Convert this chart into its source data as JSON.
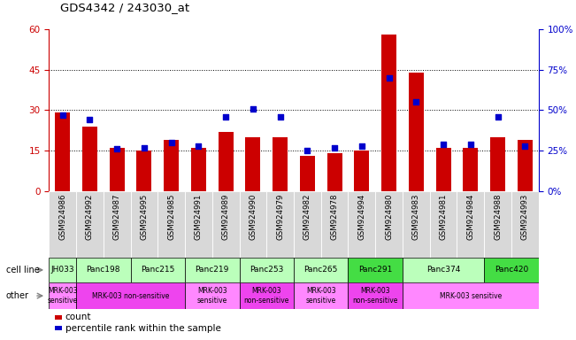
{
  "title": "GDS4342 / 243030_at",
  "samples": [
    "GSM924986",
    "GSM924992",
    "GSM924987",
    "GSM924995",
    "GSM924985",
    "GSM924991",
    "GSM924989",
    "GSM924990",
    "GSM924979",
    "GSM924982",
    "GSM924978",
    "GSM924994",
    "GSM924980",
    "GSM924983",
    "GSM924981",
    "GSM924984",
    "GSM924988",
    "GSM924993"
  ],
  "counts": [
    29,
    24,
    16,
    15,
    19,
    16,
    22,
    20,
    20,
    13,
    14,
    15,
    58,
    44,
    16,
    16,
    20,
    19
  ],
  "percentiles": [
    47,
    44,
    26,
    27,
    30,
    28,
    46,
    51,
    46,
    25,
    27,
    28,
    70,
    55,
    29,
    29,
    46,
    28
  ],
  "cell_lines": [
    {
      "name": "JH033",
      "start": 0,
      "end": 1,
      "color": "#bbffbb"
    },
    {
      "name": "Panc198",
      "start": 1,
      "end": 3,
      "color": "#bbffbb"
    },
    {
      "name": "Panc215",
      "start": 3,
      "end": 5,
      "color": "#bbffbb"
    },
    {
      "name": "Panc219",
      "start": 5,
      "end": 7,
      "color": "#bbffbb"
    },
    {
      "name": "Panc253",
      "start": 7,
      "end": 9,
      "color": "#bbffbb"
    },
    {
      "name": "Panc265",
      "start": 9,
      "end": 11,
      "color": "#bbffbb"
    },
    {
      "name": "Panc291",
      "start": 11,
      "end": 13,
      "color": "#44dd44"
    },
    {
      "name": "Panc374",
      "start": 13,
      "end": 16,
      "color": "#bbffbb"
    },
    {
      "name": "Panc420",
      "start": 16,
      "end": 18,
      "color": "#44dd44"
    }
  ],
  "other_groups": [
    {
      "name": "MRK-003\nsensitive",
      "start": 0,
      "end": 1,
      "color": "#ff88ff"
    },
    {
      "name": "MRK-003 non-sensitive",
      "start": 1,
      "end": 5,
      "color": "#ee44ee"
    },
    {
      "name": "MRK-003\nsensitive",
      "start": 5,
      "end": 7,
      "color": "#ff88ff"
    },
    {
      "name": "MRK-003\nnon-sensitive",
      "start": 7,
      "end": 9,
      "color": "#ee44ee"
    },
    {
      "name": "MRK-003\nsensitive",
      "start": 9,
      "end": 11,
      "color": "#ff88ff"
    },
    {
      "name": "MRK-003\nnon-sensitive",
      "start": 11,
      "end": 13,
      "color": "#ee44ee"
    },
    {
      "name": "MRK-003 sensitive",
      "start": 13,
      "end": 18,
      "color": "#ff88ff"
    }
  ],
  "ylim_left": [
    0,
    60
  ],
  "ylim_right": [
    0,
    100
  ],
  "yticks_left": [
    0,
    15,
    30,
    45,
    60
  ],
  "yticks_right": [
    0,
    25,
    50,
    75,
    100
  ],
  "bar_color": "#cc0000",
  "dot_color": "#0000cc",
  "tick_color_left": "#cc0000",
  "tick_color_right": "#0000cc",
  "sample_bg_color": "#d8d8d8",
  "fig_width": 6.51,
  "fig_height": 3.84,
  "dpi": 100
}
